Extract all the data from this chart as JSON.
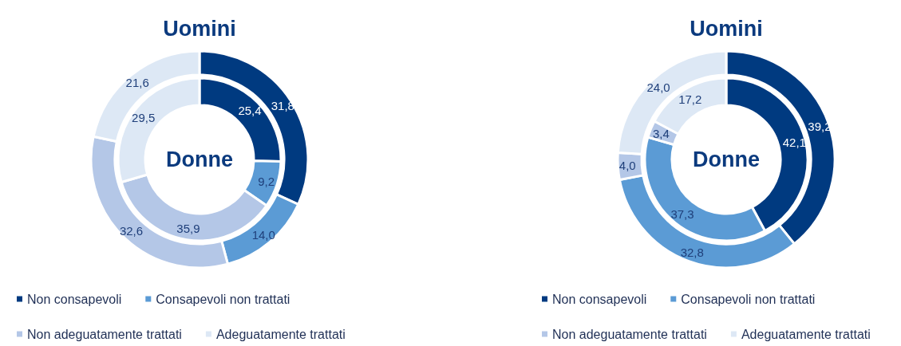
{
  "chart_data": [
    {
      "type": "donut",
      "categories": [
        "Non consapevoli",
        "Consapevoli non trattati",
        "Non adeguatamente trattati",
        "Adeguatamente trattati"
      ],
      "colors": [
        "#003a80",
        "#5b9bd5",
        "#b4c7e7",
        "#dde8f5"
      ],
      "legend": "bottom",
      "series": [
        {
          "name": "Uomini",
          "values": [
            31.8,
            14.0,
            32.6,
            21.6
          ],
          "value_labels": [
            "31,8",
            "14,0",
            "32,6",
            "21,6"
          ]
        },
        {
          "name": "Donne",
          "values": [
            25.4,
            9.2,
            35.9,
            29.5
          ],
          "value_labels": [
            "25,4",
            "9,2",
            "35,9",
            "29,5"
          ]
        }
      ]
    },
    {
      "type": "donut",
      "categories": [
        "Non consapevoli",
        "Consapevoli non trattati",
        "Non adeguatamente trattati",
        "Adeguatamente trattati"
      ],
      "colors": [
        "#003a80",
        "#5b9bd5",
        "#b4c7e7",
        "#dde8f5"
      ],
      "legend": "bottom",
      "series": [
        {
          "name": "Uomini",
          "values": [
            39.2,
            32.8,
            4.0,
            24.0
          ],
          "value_labels": [
            "39,2",
            "32,8",
            "4,0",
            "24,0"
          ]
        },
        {
          "name": "Donne",
          "values": [
            42.1,
            37.3,
            3.4,
            17.2
          ],
          "value_labels": [
            "42,1",
            "37,3",
            "3,4",
            "17,2"
          ]
        }
      ]
    }
  ]
}
